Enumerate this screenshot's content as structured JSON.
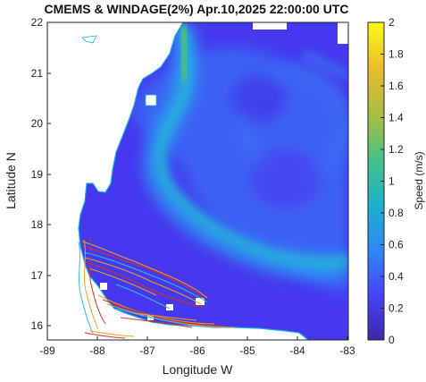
{
  "title": "CMEMS & WINDAGE(2%) Apr.10,2025 22:00:00 UTC",
  "map": {
    "xlabel": "Longitude W",
    "ylabel": "Latitude N",
    "x_range": [
      -89,
      -83
    ],
    "y_range": [
      15.7,
      22
    ],
    "x_ticks": [
      "-89",
      "-88",
      "-87",
      "-86",
      "-85",
      "-84",
      "-83"
    ],
    "y_ticks": [
      "16",
      "17",
      "18",
      "19",
      "20",
      "21",
      "22"
    ]
  },
  "colorbar": {
    "label": "Speed (m/s)",
    "min": 0,
    "max": 2,
    "ticks": [
      "0",
      "0.2",
      "0.4",
      "0.6",
      "0.8",
      "1",
      "1.2",
      "1.4",
      "1.6",
      "1.8",
      "2"
    ],
    "colormap": [
      "#3e26a8",
      "#4743f8",
      "#2e87f7",
      "#1cb0cd",
      "#40c28b",
      "#a4be43",
      "#eaba30",
      "#f9fb15"
    ]
  },
  "colors": {
    "ocean": "#4a3ef0",
    "land": "#ffffff",
    "coast": "#1ab0e0",
    "trajectory_orange": "#e8a020",
    "trajectory_red": "#d83020",
    "trajectory_cyan": "#2cc0d8"
  }
}
